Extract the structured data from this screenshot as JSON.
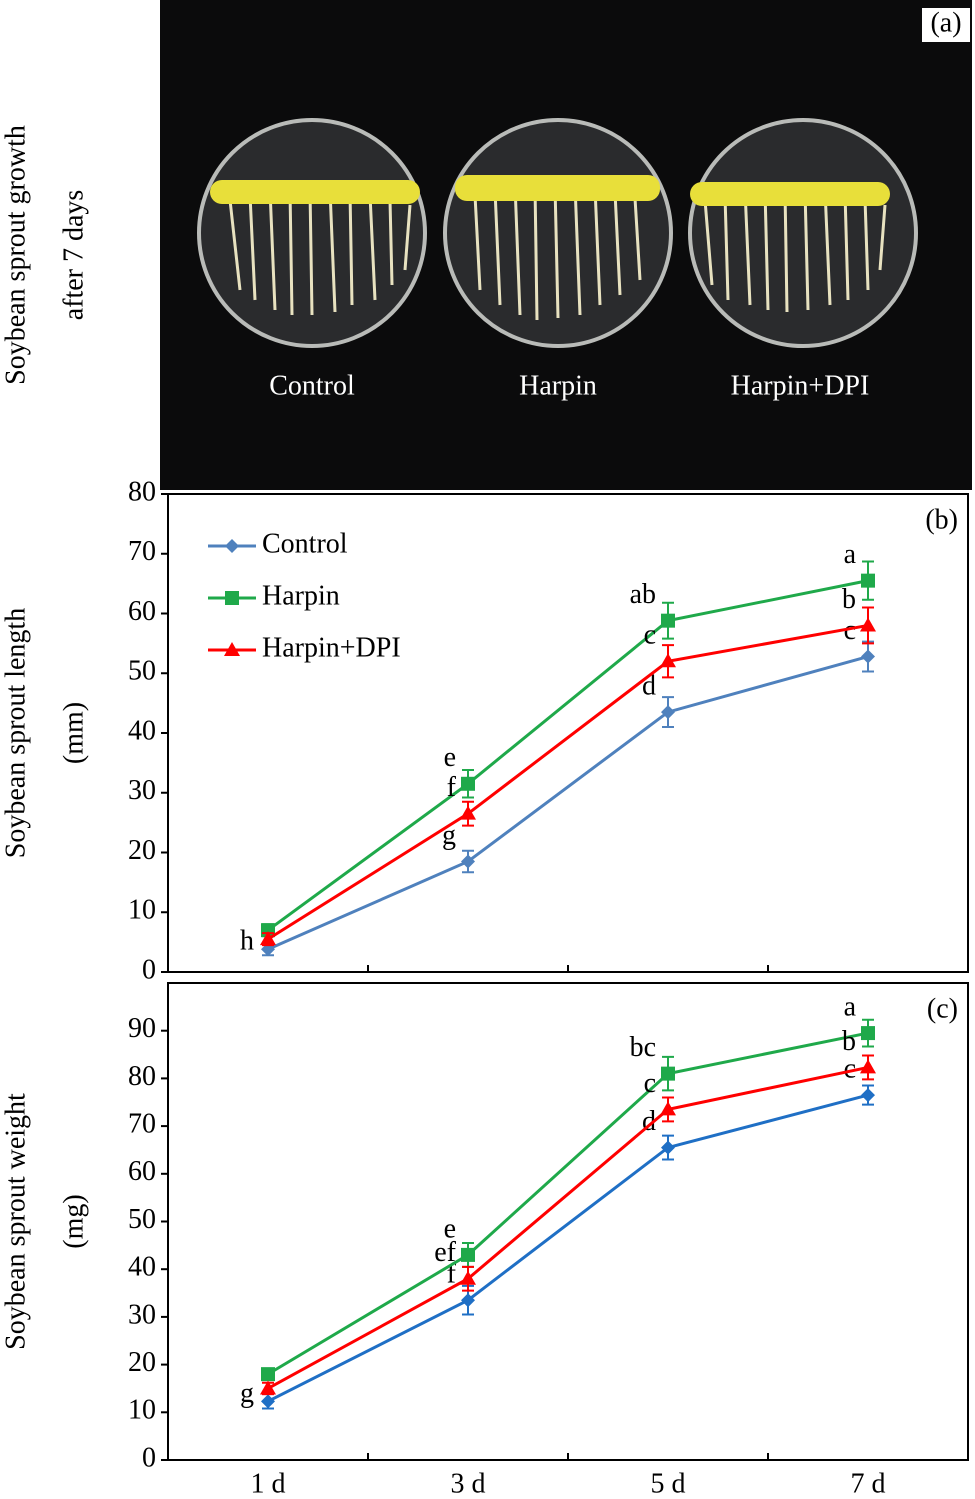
{
  "photo": {
    "panel_label": "(a)",
    "ylabel": [
      "Soybean sprout growth",
      "after 7 days"
    ],
    "labels": [
      "Control",
      "Harpin",
      "Harpin+DPI"
    ]
  },
  "chart_data": [
    {
      "type": "line",
      "panel_label": "(b)",
      "ylabel": [
        "Soybean sprout length",
        "(mm)"
      ],
      "categories": [
        null,
        null,
        null,
        null
      ],
      "ylim": [
        0,
        80
      ],
      "yticks": [
        0,
        10,
        20,
        30,
        40,
        50,
        60,
        70,
        80
      ],
      "legend": "upper left",
      "series": [
        {
          "name": "Control",
          "color": "#4f81bd",
          "marker": "diamond",
          "values": [
            3.8,
            18.5,
            43.5,
            52.8
          ],
          "errors": [
            1,
            1.8,
            2.5,
            2.5
          ],
          "letters": [
            "h",
            "g",
            "d",
            "c"
          ]
        },
        {
          "name": "Harpin",
          "color": "#1fa94a",
          "marker": "square",
          "values": [
            7,
            31.5,
            58.8,
            65.5
          ],
          "errors": [
            1,
            2.3,
            3,
            3.2
          ],
          "letters": [
            null,
            "e",
            "ab",
            "a"
          ]
        },
        {
          "name": "Harpin+DPI",
          "color": "#ff0000",
          "marker": "triangle",
          "values": [
            5.5,
            26.5,
            52,
            58
          ],
          "errors": [
            1,
            2,
            2.7,
            3
          ],
          "letters": [
            null,
            "f",
            "c",
            "b"
          ]
        }
      ]
    },
    {
      "type": "line",
      "panel_label": "(c)",
      "ylabel": [
        "Soybean sprout weight",
        "(mg)"
      ],
      "categories": [
        "1 d",
        "3 d",
        "5 d",
        "7 d"
      ],
      "ylim": [
        0,
        100
      ],
      "yticks": [
        0,
        10,
        20,
        30,
        40,
        50,
        60,
        70,
        80,
        90
      ],
      "series": [
        {
          "name": "Control",
          "color": "#1f6fc5",
          "marker": "diamond",
          "values": [
            12.3,
            33.5,
            65.5,
            76.5
          ],
          "errors": [
            1.5,
            3,
            2.5,
            2
          ],
          "letters": [
            "g",
            "f",
            "d",
            "c"
          ]
        },
        {
          "name": "Harpin",
          "color": "#1fa94a",
          "marker": "square",
          "values": [
            18,
            43,
            81,
            89.5
          ],
          "errors": [
            1,
            2.5,
            3.5,
            2.8
          ],
          "letters": [
            null,
            "e",
            "bc",
            "a"
          ]
        },
        {
          "name": "Harpin+DPI",
          "color": "#ff0000",
          "marker": "triangle",
          "values": [
            15,
            38,
            73.5,
            82.3
          ],
          "errors": [
            1.2,
            2.5,
            2.5,
            2.5
          ],
          "letters": [
            null,
            "ef",
            "c",
            "b"
          ]
        }
      ]
    }
  ]
}
